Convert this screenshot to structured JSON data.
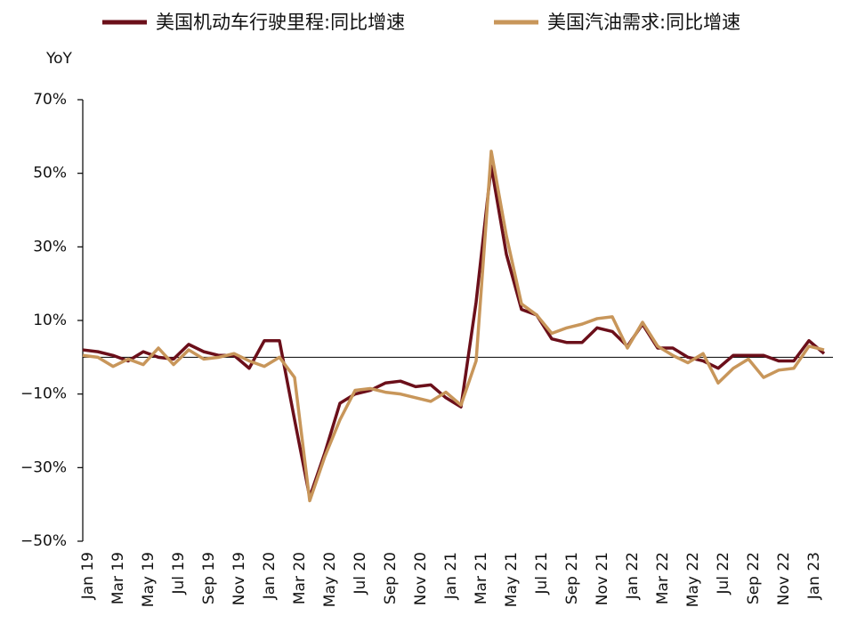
{
  "chart_data": {
    "type": "line",
    "y_label": "YoY",
    "categories": [
      "Jan 19",
      null,
      "Mar 19",
      null,
      "May 19",
      null,
      "Jul 19",
      null,
      "Sep 19",
      null,
      "Nov 19",
      null,
      "Jan 20",
      null,
      "Mar 20",
      null,
      "May 20",
      null,
      "Jul 20",
      null,
      "Sep 20",
      null,
      "Nov 20",
      null,
      "Jan 21",
      null,
      "Mar 21",
      null,
      "May 21",
      null,
      "Jul 21",
      null,
      "Sep 21",
      null,
      "Nov 21",
      null,
      "Jan 22",
      null,
      "Mar 22",
      null,
      "May 22",
      null,
      "Jul 22",
      null,
      "Sep 22",
      null,
      "Nov 22",
      null,
      "Jan 23",
      null
    ],
    "series": [
      {
        "name": "美国机动车行驶里程:同比增速",
        "color": "#6b0f1a",
        "values": [
          2,
          1.5,
          0.5,
          -1,
          1.5,
          0,
          -0.5,
          3.5,
          1.5,
          0.5,
          0.5,
          -3,
          4.5,
          4.5,
          -17,
          -38,
          -26,
          -12.5,
          -10,
          -9,
          -7,
          -6.5,
          -8,
          -7.5,
          -11,
          -13.5,
          15,
          52,
          28,
          13,
          11.5,
          5,
          4,
          4,
          8,
          7,
          3,
          9,
          2.5,
          2.5,
          0,
          -1,
          -3,
          0.5,
          0.5,
          0.5,
          -1,
          -1,
          4.5,
          1
        ]
      },
      {
        "name": "美国汽油需求:同比增速",
        "color": "#c8965a",
        "values": [
          0.5,
          0,
          -2.5,
          -0.5,
          -2,
          2.5,
          -2,
          2,
          -0.5,
          0,
          1,
          -1,
          -2.5,
          0,
          -5.5,
          -39,
          -27,
          -17,
          -9,
          -8.5,
          -9.5,
          -10,
          -11,
          -12,
          -9.5,
          -13,
          -1,
          56,
          33,
          14.5,
          11.5,
          6.5,
          8,
          9,
          10.5,
          11,
          2.5,
          9.5,
          3,
          0.5,
          -1.5,
          1,
          -7,
          -3,
          -0.5,
          -5.5,
          -3.5,
          -3,
          3,
          2
        ]
      }
    ],
    "ylim": [
      -50,
      70
    ],
    "yticks": [
      {
        "value": -50,
        "label": "−50%"
      },
      {
        "value": -30,
        "label": "−30%"
      },
      {
        "value": -10,
        "label": "−10%"
      },
      {
        "value": 10,
        "label": "10%"
      },
      {
        "value": 30,
        "label": "30%"
      },
      {
        "value": 50,
        "label": "50%"
      },
      {
        "value": 70,
        "label": "70%"
      }
    ],
    "legend": "top"
  }
}
